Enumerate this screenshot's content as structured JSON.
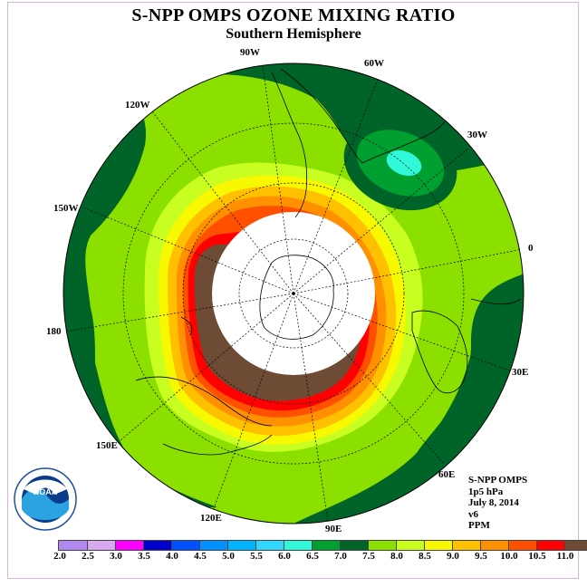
{
  "title": "S-NPP OMPS OZONE MIXING RATIO",
  "subtitle": "Southern Hemisphere",
  "longitude_labels": [
    "90W",
    "60W",
    "120W",
    "30W",
    "150W",
    "0",
    "180",
    "30E",
    "150E",
    "60E",
    "120E",
    "90E"
  ],
  "info": {
    "instrument": "S-NPP OMPS",
    "level": "1p5 hPa",
    "date": "July 8, 2014",
    "version": "v6",
    "units": "PPM"
  },
  "logo_text": "NOAA",
  "colorbar": {
    "ticks": [
      "2.0",
      "2.5",
      "3.0",
      "3.5",
      "4.0",
      "4.5",
      "5.0",
      "5.5",
      "6.0",
      "6.5",
      "7.0",
      "7.5",
      "8.0",
      "8.5",
      "9.0",
      "9.5",
      "10.0",
      "10.5",
      "11.0"
    ],
    "colors": [
      "#b088f0",
      "#d8a8f0",
      "#ff00ff",
      "#0000cc",
      "#0050ff",
      "#0090ff",
      "#00b4ff",
      "#30d8ff",
      "#30f8d8",
      "#00a030",
      "#006428",
      "#8ce000",
      "#c8ff20",
      "#f8f800",
      "#ffc000",
      "#ff9000",
      "#ff5000",
      "#ff0000",
      "#6e4b35"
    ]
  },
  "map": {
    "projection": "south polar stereographic",
    "background_ring_color": "#006428",
    "polar_night_color": "#ffffff"
  }
}
